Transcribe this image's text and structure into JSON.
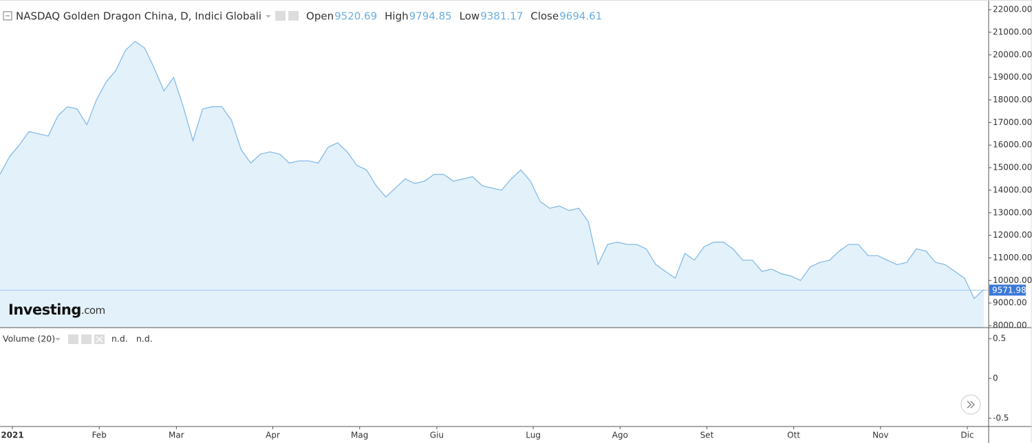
{
  "chart_data": [
    {
      "type": "area",
      "title": "NASDAQ Golden Dragon China, D, Indici Globali",
      "stats": [
        {
          "label": "Open",
          "value": 9520.69
        },
        {
          "label": "High",
          "value": 9794.85
        },
        {
          "label": "Low",
          "value": 9381.17
        },
        {
          "label": "Close",
          "value": 9694.61
        }
      ],
      "categories": [
        null,
        "2021",
        null,
        null,
        null,
        null,
        null,
        null,
        null,
        null,
        "Feb",
        null,
        null,
        null,
        null,
        null,
        null,
        null,
        "Mar",
        null,
        null,
        null,
        null,
        null,
        null,
        null,
        null,
        null,
        "Apr",
        null,
        null,
        null,
        null,
        null,
        null,
        null,
        null,
        "Mag",
        null,
        null,
        null,
        null,
        null,
        null,
        null,
        "Giu",
        null,
        null,
        null,
        null,
        null,
        null,
        null,
        null,
        null,
        "Lug",
        null,
        null,
        null,
        null,
        null,
        null,
        null,
        null,
        "Ago",
        null,
        null,
        null,
        null,
        null,
        null,
        null,
        null,
        "Set",
        null,
        null,
        null,
        null,
        null,
        null,
        null,
        null,
        "Ott",
        null,
        null,
        null,
        null,
        null,
        null,
        null,
        null,
        "Nov",
        null,
        null,
        null,
        null,
        null,
        null,
        null,
        null,
        "Dic",
        null,
        null
      ],
      "values": [
        14700,
        15500,
        16000,
        16600,
        16500,
        16400,
        17300,
        17700,
        17600,
        16900,
        18000,
        18800,
        19300,
        20200,
        20600,
        20300,
        19400,
        18400,
        19000,
        17700,
        16200,
        17600,
        17700,
        17700,
        17100,
        15800,
        15200,
        15600,
        15700,
        15600,
        15200,
        15300,
        15300,
        15200,
        15900,
        16100,
        15700,
        15100,
        14900,
        14200,
        13700,
        14100,
        14500,
        14300,
        14400,
        14700,
        14700,
        14400,
        14500,
        14600,
        14200,
        14100,
        14000,
        14500,
        14900,
        14400,
        13500,
        13200,
        13300,
        13100,
        13200,
        12600,
        10700,
        11600,
        11700,
        11600,
        11600,
        11400,
        10700,
        10400,
        10100,
        11200,
        10900,
        11500,
        11700,
        11700,
        11400,
        10900,
        10900,
        10400,
        10500,
        10300,
        10200,
        10000,
        10600,
        10800,
        10900,
        11300,
        11600,
        11600,
        11100,
        11100,
        10900,
        10700,
        10800,
        11400,
        11300,
        10800,
        10700,
        10400,
        10100,
        9200,
        9600
      ],
      "color": "#7db6e3",
      "fill": "#e3f1fb",
      "last_value": 9571.98,
      "last_color": "#3d79d6",
      "ylim": [
        7910,
        22430
      ],
      "yticks": [
        {
          "value": 8000,
          "label": "8000.00"
        },
        {
          "value": 9000,
          "label": "9000.00"
        },
        {
          "value": 10000,
          "label": "10000.00"
        },
        {
          "value": 11000,
          "label": "11000.00"
        },
        {
          "value": 12000,
          "label": "12000.00"
        },
        {
          "value": 13000,
          "label": "13000.00"
        },
        {
          "value": 14000,
          "label": "14000.00"
        },
        {
          "value": 15000,
          "label": "15000.00"
        },
        {
          "value": 16000,
          "label": "16000.00"
        },
        {
          "value": 17000,
          "label": "17000.00"
        },
        {
          "value": 18000,
          "label": "18000.00"
        },
        {
          "value": 19000,
          "label": "19000.00"
        },
        {
          "value": 20000,
          "label": "20000.00"
        },
        {
          "value": 21000,
          "label": "21000.00"
        },
        {
          "value": 22000,
          "label": "22000.00"
        }
      ]
    },
    {
      "type": "volume",
      "title": "Volume (20)",
      "readouts": [
        "n.d.",
        "n.d."
      ],
      "ylim": [
        -0.595,
        0.63
      ],
      "yticks": [
        0.5,
        0,
        -0.5
      ]
    }
  ],
  "logo": {
    "name": "Investing",
    "suffix": ".com"
  }
}
